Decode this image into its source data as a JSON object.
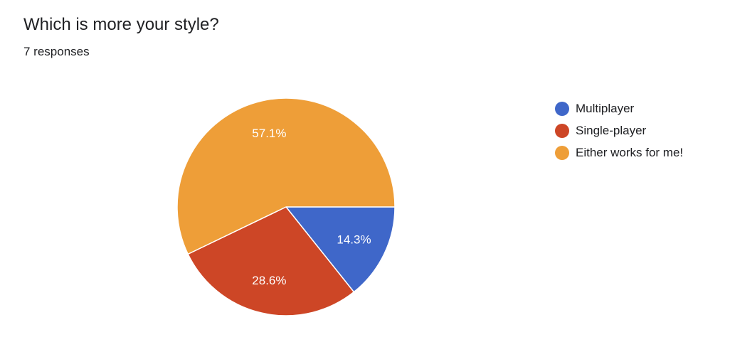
{
  "header": {
    "title": "Which is more your style?",
    "responses": "7 responses"
  },
  "chart_data": {
    "type": "pie",
    "title": "Which is more your style?",
    "subtitle": "7 responses",
    "legend_position": "right",
    "slices": [
      {
        "name": "Multiplayer",
        "count": 1,
        "percent": 14.3,
        "label": "14.3%",
        "color": "#3f67c9"
      },
      {
        "name": "Single-player",
        "count": 2,
        "percent": 28.6,
        "label": "28.6%",
        "color": "#cd4626"
      },
      {
        "name": "Either works for me!",
        "count": 4,
        "percent": 57.1,
        "label": "57.1%",
        "color": "#ee9e38"
      }
    ]
  }
}
